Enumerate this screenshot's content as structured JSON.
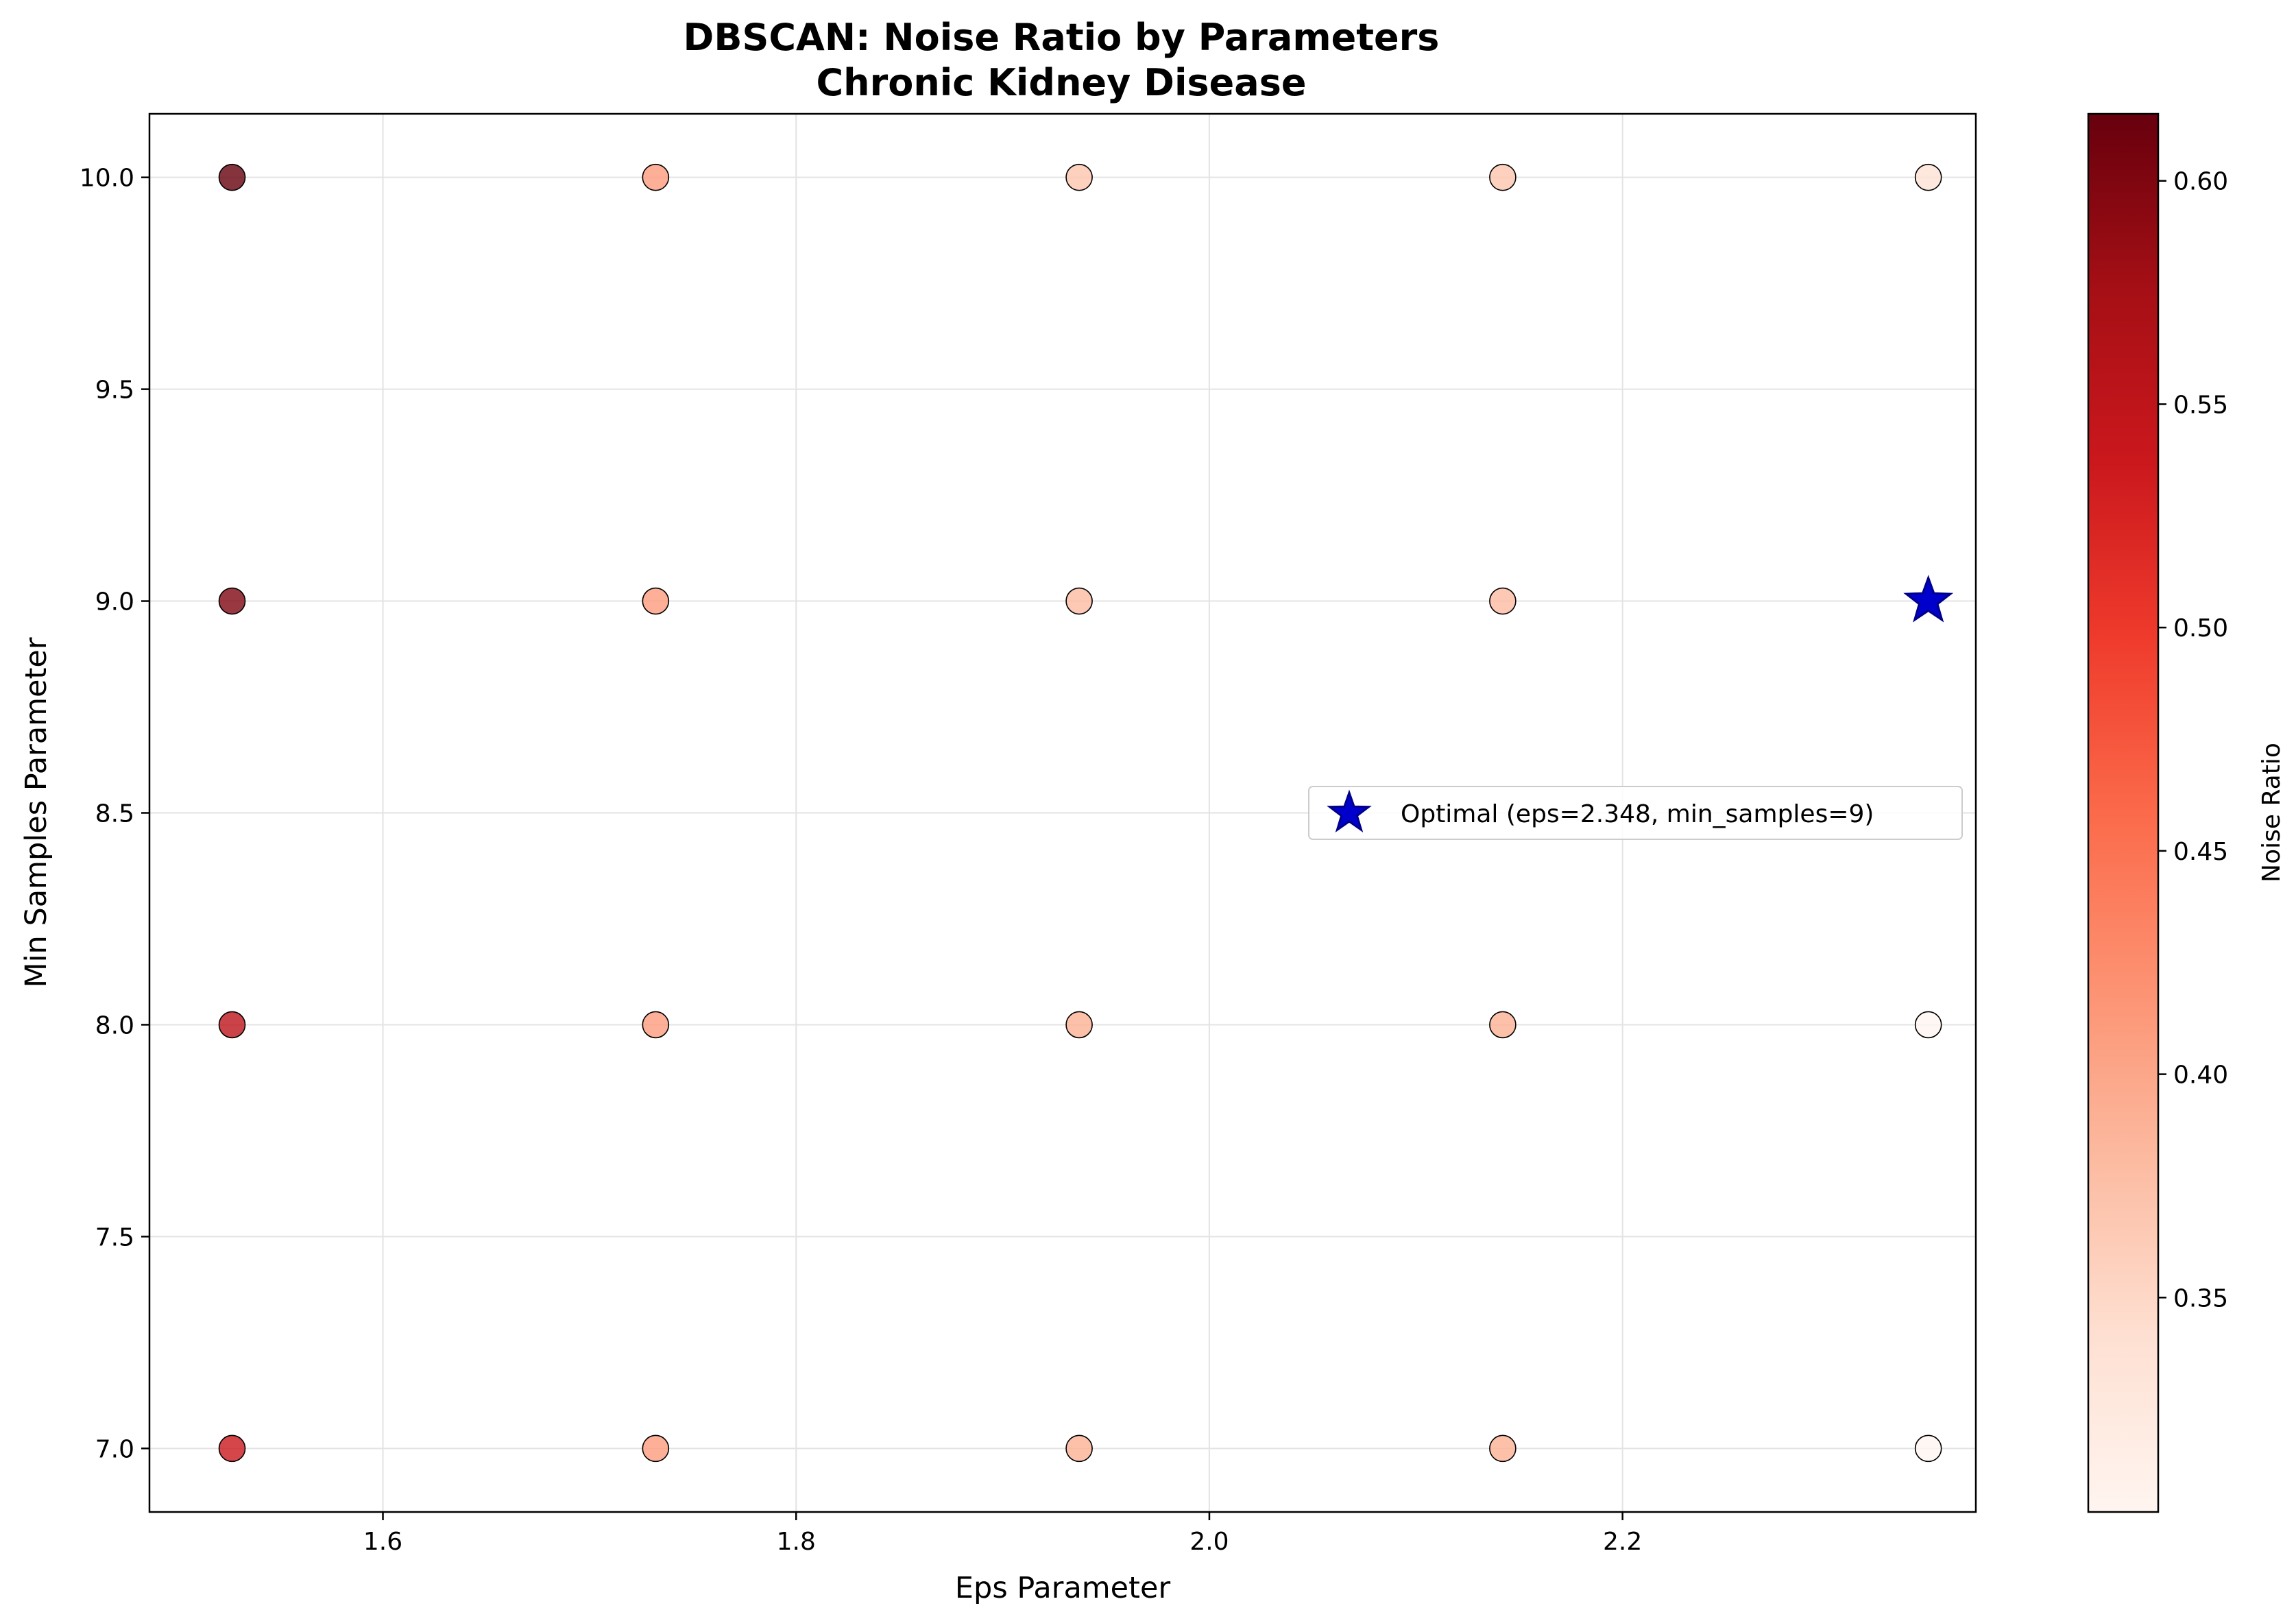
{
  "chart_data": {
    "type": "scatter",
    "title": "DBSCAN: Noise Ratio by Parameters",
    "subtitle": "Chronic Kidney Disease",
    "xlabel": "Eps Parameter",
    "ylabel": "Min Samples Parameter",
    "xlim": [
      1.487,
      2.371
    ],
    "ylim": [
      6.85,
      10.15
    ],
    "xticks": [
      "1.6",
      "1.8",
      "2.0",
      "2.2"
    ],
    "yticks": [
      "7.0",
      "7.5",
      "8.0",
      "8.5",
      "9.0",
      "9.5",
      "10.0"
    ],
    "grid": true,
    "colorbar": {
      "label": "Noise Ratio",
      "colormap": "Reds",
      "range": [
        0.302,
        0.615
      ],
      "ticks": [
        "0.35",
        "0.40",
        "0.45",
        "0.50",
        "0.55",
        "0.60"
      ]
    },
    "points": [
      {
        "x": 1.527,
        "y": 7,
        "noise_ratio": 0.538
      },
      {
        "x": 1.527,
        "y": 8,
        "noise_ratio": 0.553
      },
      {
        "x": 1.527,
        "y": 9,
        "noise_ratio": 0.6
      },
      {
        "x": 1.527,
        "y": 10,
        "noise_ratio": 0.615
      },
      {
        "x": 1.732,
        "y": 7,
        "noise_ratio": 0.41
      },
      {
        "x": 1.732,
        "y": 8,
        "noise_ratio": 0.41
      },
      {
        "x": 1.732,
        "y": 9,
        "noise_ratio": 0.41
      },
      {
        "x": 1.732,
        "y": 10,
        "noise_ratio": 0.41
      },
      {
        "x": 1.937,
        "y": 7,
        "noise_ratio": 0.39
      },
      {
        "x": 1.937,
        "y": 8,
        "noise_ratio": 0.39
      },
      {
        "x": 1.937,
        "y": 9,
        "noise_ratio": 0.38
      },
      {
        "x": 1.937,
        "y": 10,
        "noise_ratio": 0.37
      },
      {
        "x": 2.142,
        "y": 7,
        "noise_ratio": 0.39
      },
      {
        "x": 2.142,
        "y": 8,
        "noise_ratio": 0.39
      },
      {
        "x": 2.142,
        "y": 9,
        "noise_ratio": 0.38
      },
      {
        "x": 2.142,
        "y": 10,
        "noise_ratio": 0.37
      },
      {
        "x": 2.348,
        "y": 7,
        "noise_ratio": 0.302
      },
      {
        "x": 2.348,
        "y": 8,
        "noise_ratio": 0.302
      },
      {
        "x": 2.348,
        "y": 10,
        "noise_ratio": 0.34
      }
    ],
    "optimal": {
      "x": 2.348,
      "y": 9,
      "color": "#0000cc"
    },
    "legend": {
      "entries": [
        "Optimal (eps=2.348, min_samples=9)"
      ],
      "position": "center-right"
    }
  }
}
